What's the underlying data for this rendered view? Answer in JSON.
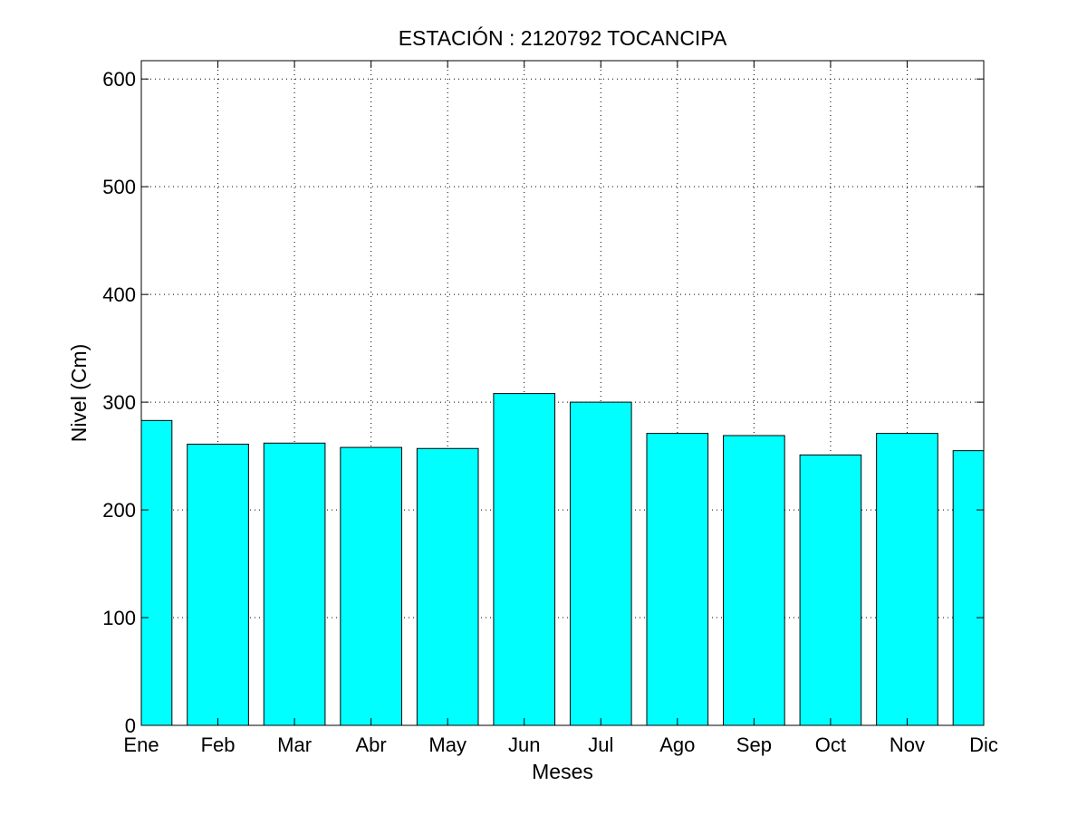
{
  "chart_data": {
    "type": "bar",
    "title": "ESTACIÓN :  2120792  TOCANCIPA",
    "xlabel": "Meses",
    "ylabel": "Nivel (Cm)",
    "categories": [
      "Ene",
      "Feb",
      "Mar",
      "Abr",
      "May",
      "Jun",
      "Jul",
      "Ago",
      "Sep",
      "Oct",
      "Nov",
      "Dic"
    ],
    "values": [
      283,
      261,
      262,
      258,
      257,
      308,
      300,
      271,
      269,
      251,
      271,
      255
    ],
    "ylim": [
      0,
      617
    ],
    "yticks": [
      0,
      100,
      200,
      300,
      400,
      500,
      600
    ],
    "xlim": [
      1,
      12
    ],
    "bar_color": "#00ffff",
    "grid": true
  }
}
